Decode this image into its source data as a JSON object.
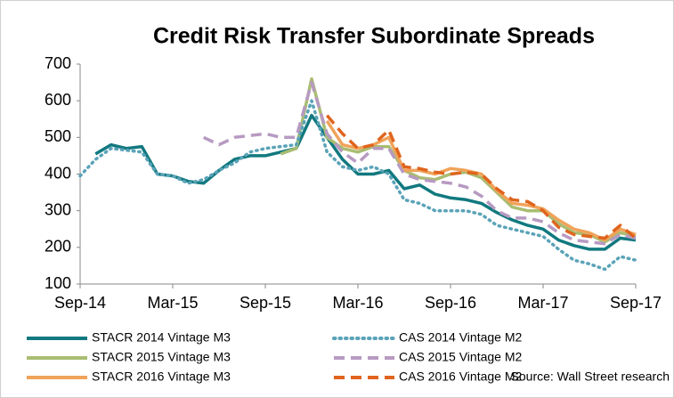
{
  "chart_data": {
    "type": "line",
    "title": "Credit Risk Transfer Subordinate Spreads",
    "categories": [
      "Sep-14",
      null,
      null,
      null,
      null,
      null,
      "Mar-15",
      null,
      null,
      null,
      null,
      null,
      "Sep-15",
      null,
      null,
      null,
      null,
      null,
      "Mar-16",
      null,
      null,
      null,
      null,
      null,
      "Sep-16",
      null,
      null,
      null,
      null,
      null,
      "Mar-17",
      null,
      null,
      null,
      null,
      null,
      "Sep-17"
    ],
    "ylim": [
      100,
      700
    ],
    "yticks": [
      100,
      200,
      300,
      400,
      500,
      600,
      700
    ],
    "source": "Source: Wall Street research",
    "series": [
      {
        "name": "STACR 2014 Vintage M3",
        "color": "#11797f",
        "style": "solid",
        "values": [
          null,
          455,
          480,
          470,
          475,
          400,
          395,
          380,
          375,
          410,
          440,
          450,
          450,
          460,
          470,
          560,
          500,
          440,
          400,
          400,
          410,
          360,
          370,
          345,
          335,
          330,
          320,
          295,
          275,
          260,
          250,
          220,
          205,
          195,
          195,
          225,
          220
        ]
      },
      {
        "name": "STACR 2015 Vintage M3",
        "color": "#a9bd72",
        "style": "solid",
        "values": [
          null,
          null,
          null,
          null,
          null,
          null,
          null,
          null,
          null,
          null,
          null,
          null,
          null,
          455,
          470,
          660,
          500,
          470,
          460,
          475,
          475,
          410,
          390,
          385,
          400,
          405,
          390,
          350,
          310,
          300,
          300,
          265,
          240,
          235,
          215,
          240,
          230
        ]
      },
      {
        "name": "STACR 2016 Vintage M3",
        "color": "#f0a35a",
        "style": "solid",
        "values": [
          null,
          null,
          null,
          null,
          null,
          null,
          null,
          null,
          null,
          null,
          null,
          null,
          null,
          null,
          null,
          null,
          545,
          480,
          470,
          480,
          500,
          410,
          410,
          400,
          415,
          410,
          400,
          355,
          320,
          315,
          305,
          275,
          250,
          240,
          220,
          250,
          235
        ]
      },
      {
        "name": "CAS 2014 Vintage M2",
        "color": "#5aa3b8",
        "style": "dotted",
        "values": [
          395,
          440,
          470,
          465,
          460,
          400,
          395,
          375,
          385,
          410,
          430,
          460,
          470,
          475,
          480,
          600,
          460,
          420,
          410,
          420,
          400,
          330,
          320,
          300,
          300,
          300,
          290,
          260,
          250,
          240,
          230,
          195,
          165,
          155,
          140,
          175,
          165
        ]
      },
      {
        "name": "CAS 2015 Vintage M2",
        "color": "#b79ac2",
        "style": "dashed",
        "values": [
          null,
          null,
          null,
          null,
          null,
          null,
          null,
          null,
          500,
          480,
          500,
          505,
          510,
          500,
          500,
          650,
          510,
          460,
          430,
          470,
          470,
          400,
          385,
          380,
          375,
          365,
          340,
          300,
          280,
          280,
          270,
          240,
          220,
          215,
          210,
          235,
          225
        ]
      },
      {
        "name": "CAS 2016 Vintage M2",
        "color": "#e0641e",
        "style": "dashed",
        "values": [
          null,
          null,
          null,
          null,
          null,
          null,
          null,
          null,
          null,
          null,
          null,
          null,
          null,
          null,
          null,
          null,
          560,
          510,
          470,
          480,
          520,
          420,
          415,
          405,
          400,
          405,
          400,
          360,
          330,
          325,
          300,
          255,
          235,
          230,
          225,
          260,
          225
        ]
      }
    ]
  }
}
